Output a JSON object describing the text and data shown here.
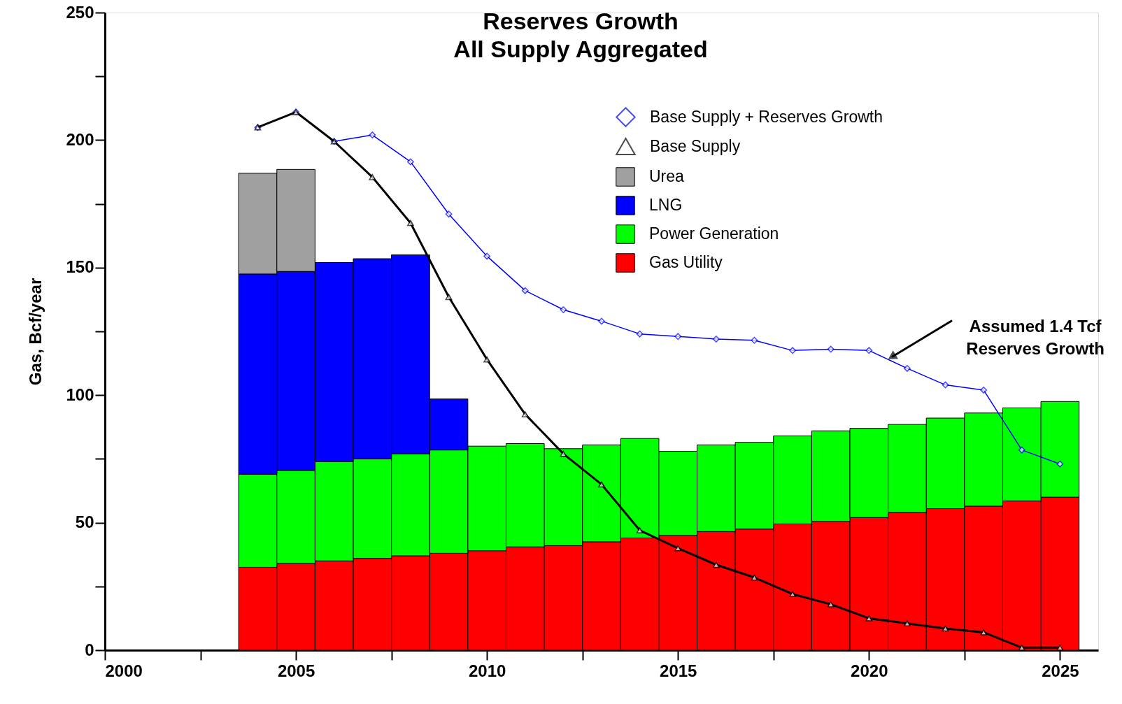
{
  "chart_data": {
    "type": "bar",
    "title": "Reserves Growth",
    "subtitle": "All Supply Aggregated",
    "ylabel": "Gas, Bcf/year",
    "stacked": true,
    "legend": "top right",
    "grid": false,
    "x": [
      2004,
      2005,
      2006,
      2007,
      2008,
      2009,
      2010,
      2011,
      2012,
      2013,
      2014,
      2015,
      2016,
      2017,
      2018,
      2019,
      2020,
      2021,
      2022,
      2023,
      2024,
      2025
    ],
    "xlim": [
      2000,
      2026
    ],
    "xticks": [
      2000,
      {
        "value": 2002.5,
        "label": null
      },
      2005,
      {
        "value": 2007.5,
        "label": null
      },
      2010,
      {
        "value": 2012.5,
        "label": null
      },
      2015,
      {
        "value": 2017.5,
        "label": null
      },
      2020,
      {
        "value": 2022.5,
        "label": null
      },
      2025
    ],
    "ylim": [
      0,
      250
    ],
    "yticks": [
      0,
      {
        "value": 25,
        "label": null
      },
      50,
      {
        "value": 75,
        "label": null
      },
      100,
      {
        "value": 125,
        "label": null
      },
      150,
      {
        "value": 175,
        "label": null
      },
      200,
      {
        "value": 225,
        "label": null
      },
      250
    ],
    "series": [
      {
        "name": "Gas Utility",
        "color": "#ff0000",
        "values": [
          32.5,
          34,
          35,
          36,
          37,
          38,
          39,
          40.5,
          41,
          42.5,
          44,
          45,
          46.5,
          47.5,
          49.5,
          50.5,
          52,
          54,
          55.5,
          56.5,
          58.5,
          60
        ]
      },
      {
        "name": "Power Generation",
        "color": "#00ff00",
        "values": [
          36.5,
          36.5,
          39,
          39,
          40,
          40.5,
          41,
          40.5,
          38,
          38,
          39,
          33,
          34,
          34,
          34.5,
          35.5,
          35,
          34.5,
          35.5,
          36.5,
          36.5,
          37.5
        ]
      },
      {
        "name": "LNG",
        "color": "#0000ff",
        "values": [
          78.5,
          78,
          78,
          78.5,
          78,
          20,
          null,
          null,
          null,
          null,
          null,
          null,
          null,
          null,
          null,
          null,
          null,
          null,
          null,
          null,
          null,
          null
        ]
      },
      {
        "name": "Urea",
        "color": "#a0a0a0",
        "values": [
          39.5,
          40,
          null,
          null,
          null,
          null,
          null,
          null,
          null,
          null,
          null,
          null,
          null,
          null,
          null,
          null,
          null,
          null,
          null,
          null,
          null,
          null
        ]
      },
      {
        "name": "Base Supply + Reserves Growth",
        "type": "line",
        "color": "#0000ff",
        "marker": "diamond",
        "values": [
          205,
          211,
          199.5,
          202,
          191.5,
          171,
          154.5,
          141,
          133.5,
          129,
          124,
          123,
          122,
          121.5,
          117.5,
          118,
          117.5,
          110.5,
          104,
          102,
          78.5,
          73
        ]
      },
      {
        "name": "Base Supply",
        "type": "line",
        "color": "#000000",
        "marker": "triangle",
        "values": [
          205,
          211,
          199.5,
          185.5,
          167.5,
          138.5,
          114,
          92.5,
          77,
          65,
          47,
          40,
          33.5,
          28.5,
          22,
          18,
          12.5,
          10.5,
          8.5,
          7,
          1,
          1
        ]
      }
    ],
    "annotations": [
      {
        "text": "Assumed 1.4 Tcf\nReserves Growth",
        "x": 2020.6,
        "y": 115
      }
    ]
  }
}
